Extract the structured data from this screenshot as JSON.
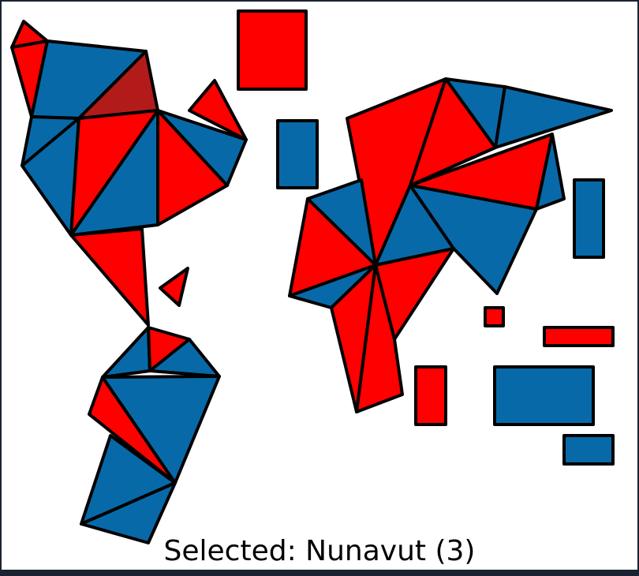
{
  "game": {
    "status_prefix": "Selected:",
    "selected_name": "Nunavut",
    "selected_count": "(3)"
  },
  "colors": {
    "red": "#ff0000",
    "blue": "#0869a8",
    "selected": "#b31b1b",
    "border": "#000000",
    "board": "#ffffff",
    "frame": "#1b2230"
  }
}
